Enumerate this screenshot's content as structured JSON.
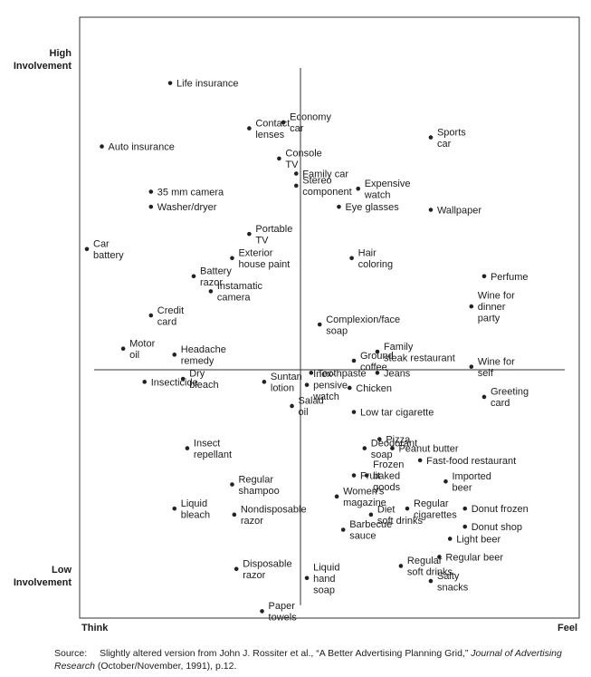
{
  "chart_data": {
    "type": "scatter",
    "y_axis": {
      "top_label": [
        "High",
        "Involvement"
      ],
      "bottom_label": [
        "Low",
        "Involvement"
      ]
    },
    "x_axis": {
      "left_label": "Think",
      "right_label": "Feel"
    },
    "xlim": [
      -1,
      1
    ],
    "ylim": [
      -1,
      1
    ],
    "grid": false,
    "points": [
      {
        "label": [
          "Life insurance"
        ],
        "x": -0.61,
        "y": 0.95
      },
      {
        "label": [
          "Contact",
          "lenses"
        ],
        "x": -0.24,
        "y": 0.8
      },
      {
        "label": [
          "Economy",
          "car"
        ],
        "x": -0.08,
        "y": 0.82
      },
      {
        "label": [
          "Sports",
          "car"
        ],
        "x": 0.61,
        "y": 0.77
      },
      {
        "label": [
          "Auto insurance"
        ],
        "x": -0.93,
        "y": 0.74
      },
      {
        "label": [
          "Console",
          "TV"
        ],
        "x": -0.1,
        "y": 0.7
      },
      {
        "label": [
          "Family car"
        ],
        "x": -0.02,
        "y": 0.65
      },
      {
        "label": [
          "Expensive",
          "watch"
        ],
        "x": 0.27,
        "y": 0.6
      },
      {
        "label": [
          "Stereo",
          "component"
        ],
        "x": -0.02,
        "y": 0.61
      },
      {
        "label": [
          "35 mm camera"
        ],
        "x": -0.7,
        "y": 0.59
      },
      {
        "label": [
          "Eye glasses"
        ],
        "x": 0.18,
        "y": 0.54
      },
      {
        "label": [
          "Washer/dryer"
        ],
        "x": -0.7,
        "y": 0.54
      },
      {
        "label": [
          "Wallpaper"
        ],
        "x": 0.61,
        "y": 0.53
      },
      {
        "label": [
          "Portable",
          "TV"
        ],
        "x": -0.24,
        "y": 0.45
      },
      {
        "label": [
          "Car",
          "battery"
        ],
        "x": -1.0,
        "y": 0.4
      },
      {
        "label": [
          "Exterior",
          "house paint"
        ],
        "x": -0.32,
        "y": 0.37
      },
      {
        "label": [
          "Hair",
          "coloring"
        ],
        "x": 0.24,
        "y": 0.37
      },
      {
        "label": [
          "Perfume"
        ],
        "x": 0.86,
        "y": 0.31
      },
      {
        "label": [
          "Battery",
          "razor"
        ],
        "x": -0.5,
        "y": 0.31
      },
      {
        "label": [
          "Instamatic",
          "camera"
        ],
        "x": -0.42,
        "y": 0.26
      },
      {
        "label": [
          "Wine for",
          "dinner",
          "party"
        ],
        "x": 0.8,
        "y": 0.21
      },
      {
        "label": [
          "Credit",
          "card"
        ],
        "x": -0.7,
        "y": 0.18
      },
      {
        "label": [
          "Complexion/face",
          "soap"
        ],
        "x": 0.09,
        "y": 0.15
      },
      {
        "label": [
          "Motor",
          "oil"
        ],
        "x": -0.83,
        "y": 0.07
      },
      {
        "label": [
          "Headache",
          "remedy"
        ],
        "x": -0.59,
        "y": 0.05
      },
      {
        "label": [
          "Ground",
          "coffee"
        ],
        "x": 0.25,
        "y": 0.03
      },
      {
        "label": [
          "Family",
          "steak restaurant"
        ],
        "x": 0.36,
        "y": 0.06
      },
      {
        "label": [
          "Wine for",
          "self"
        ],
        "x": 0.8,
        "y": 0.01
      },
      {
        "label": [
          "Toothpaste"
        ],
        "x": 0.05,
        "y": -0.01
      },
      {
        "label": [
          "Jeans"
        ],
        "x": 0.36,
        "y": -0.01
      },
      {
        "label": [
          "Insecticide"
        ],
        "x": -0.73,
        "y": -0.04
      },
      {
        "label": [
          "Dry",
          "bleach"
        ],
        "x": -0.55,
        "y": -0.03
      },
      {
        "label": [
          "Suntan",
          "lotion"
        ],
        "x": -0.17,
        "y": -0.04
      },
      {
        "label": [
          "Inex-",
          "pensive",
          "watch"
        ],
        "x": 0.03,
        "y": -0.05
      },
      {
        "label": [
          "Chicken"
        ],
        "x": 0.23,
        "y": -0.06
      },
      {
        "label": [
          "Greeting",
          "card"
        ],
        "x": 0.86,
        "y": -0.09
      },
      {
        "label": [
          "Salad",
          "oil"
        ],
        "x": -0.04,
        "y": -0.12
      },
      {
        "label": [
          "Low tar cigarette"
        ],
        "x": 0.25,
        "y": -0.14
      },
      {
        "label": [
          "Pizza"
        ],
        "x": 0.37,
        "y": -0.23
      },
      {
        "label": [
          "Deodorant",
          "soap"
        ],
        "x": 0.3,
        "y": -0.26
      },
      {
        "label": [
          "Peanut butter"
        ],
        "x": 0.43,
        "y": -0.26
      },
      {
        "label": [
          "Insect",
          "repellant"
        ],
        "x": -0.53,
        "y": -0.26
      },
      {
        "label": [
          "Fast-food restaurant"
        ],
        "x": 0.56,
        "y": -0.3
      },
      {
        "label": [
          "Fruit"
        ],
        "x": 0.25,
        "y": -0.35
      },
      {
        "label": [
          "Frozen",
          "baked",
          "goods"
        ],
        "x": 0.31,
        "y": -0.35
      },
      {
        "label": [
          "Imported",
          "beer"
        ],
        "x": 0.68,
        "y": -0.37
      },
      {
        "label": [
          "Regular",
          "shampoo"
        ],
        "x": -0.32,
        "y": -0.38
      },
      {
        "label": [
          "Women's",
          "magazine"
        ],
        "x": 0.17,
        "y": -0.42
      },
      {
        "label": [
          "Regular",
          "cigarettes"
        ],
        "x": 0.5,
        "y": -0.46
      },
      {
        "label": [
          "Donut frozen"
        ],
        "x": 0.77,
        "y": -0.46
      },
      {
        "label": [
          "Liquid",
          "bleach"
        ],
        "x": -0.59,
        "y": -0.46
      },
      {
        "label": [
          "Nondisposable",
          "razor"
        ],
        "x": -0.31,
        "y": -0.48
      },
      {
        "label": [
          "Diet",
          "soft drinks"
        ],
        "x": 0.33,
        "y": -0.48
      },
      {
        "label": [
          "Donut shop"
        ],
        "x": 0.77,
        "y": -0.52
      },
      {
        "label": [
          "Barbecue",
          "sauce"
        ],
        "x": 0.2,
        "y": -0.53
      },
      {
        "label": [
          "Light beer"
        ],
        "x": 0.7,
        "y": -0.56
      },
      {
        "label": [
          "Regular beer"
        ],
        "x": 0.65,
        "y": -0.62
      },
      {
        "label": [
          "Disposable",
          "razor"
        ],
        "x": -0.3,
        "y": -0.66
      },
      {
        "label": [
          "Regular",
          "soft drinks"
        ],
        "x": 0.47,
        "y": -0.65
      },
      {
        "label": [
          "Liquid",
          "hand",
          "soap"
        ],
        "x": 0.03,
        "y": -0.69
      },
      {
        "label": [
          "Salty",
          "snacks"
        ],
        "x": 0.61,
        "y": -0.7
      },
      {
        "label": [
          "Paper",
          "towels"
        ],
        "x": -0.18,
        "y": -0.8
      }
    ]
  },
  "source": {
    "lead": "Source:",
    "text_before": "Slightly altered version from John J. Rossiter et al., “A Better Advertising Planning Grid,” ",
    "journal": "Journal of Advertising Research",
    "text_after": " (October/November, 1991), p.12."
  }
}
